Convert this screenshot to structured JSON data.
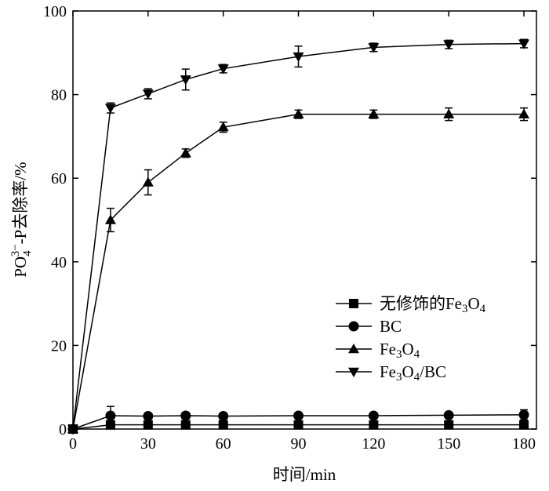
{
  "chart_data": {
    "type": "line",
    "title": "",
    "xlabel": "时间/min",
    "ylabel_parts": {
      "base": "PO",
      "sub": "4",
      "sup": "3−",
      "rest": "-P去除率/%"
    },
    "xlim": [
      0,
      185
    ],
    "ylim": [
      0,
      100
    ],
    "xticks": [
      0,
      30,
      60,
      90,
      120,
      150,
      180
    ],
    "yticks": [
      0,
      20,
      40,
      60,
      80,
      100
    ],
    "grid": false,
    "legend_position": "center-right",
    "x": [
      0,
      15,
      30,
      45,
      60,
      90,
      120,
      150,
      180
    ],
    "series": [
      {
        "id": "unmodified",
        "name": "无修饰的Fe3O4",
        "legend_parts": [
          [
            "无修饰的Fe",
            "n"
          ],
          [
            "3",
            "sub"
          ],
          [
            "O",
            "n"
          ],
          [
            "4",
            "sub"
          ]
        ],
        "marker": "square",
        "values": [
          0,
          1.0,
          1.0,
          1.0,
          1.0,
          1.0,
          1.0,
          1.0,
          1.0
        ],
        "errors": [
          0,
          0.3,
          0.3,
          0.3,
          0.3,
          0.3,
          0.3,
          0.3,
          0.3
        ]
      },
      {
        "id": "bc",
        "name": "BC",
        "legend_parts": [
          [
            "BC",
            "n"
          ]
        ],
        "marker": "circle",
        "values": [
          0,
          3.2,
          3.1,
          3.2,
          3.1,
          3.2,
          3.2,
          3.3,
          3.4
        ],
        "errors": [
          0,
          2.2,
          0.5,
          0.8,
          0.5,
          0.5,
          0.5,
          0.5,
          1.2
        ]
      },
      {
        "id": "fe3o4",
        "name": "Fe3O4",
        "legend_parts": [
          [
            "Fe",
            "n"
          ],
          [
            "3",
            "sub"
          ],
          [
            "O",
            "n"
          ],
          [
            "4",
            "sub"
          ]
        ],
        "marker": "triangle-up",
        "values": [
          0,
          50.0,
          59.0,
          66.0,
          72.2,
          75.3,
          75.3,
          75.3,
          75.3
        ],
        "errors": [
          0,
          2.8,
          3.0,
          1.0,
          1.2,
          1.0,
          1.0,
          1.5,
          1.5
        ]
      },
      {
        "id": "fe3o4bc",
        "name": "Fe3O4/BC",
        "legend_parts": [
          [
            "Fe",
            "n"
          ],
          [
            "3",
            "sub"
          ],
          [
            "O",
            "n"
          ],
          [
            "4",
            "sub"
          ],
          [
            "/BC",
            "n"
          ]
        ],
        "marker": "triangle-down",
        "values": [
          0,
          76.8,
          80.2,
          83.6,
          86.2,
          89.1,
          91.3,
          92.0,
          92.2
        ],
        "errors": [
          0,
          1.2,
          1.2,
          2.5,
          1.0,
          2.5,
          1.0,
          1.0,
          1.0
        ]
      }
    ]
  }
}
